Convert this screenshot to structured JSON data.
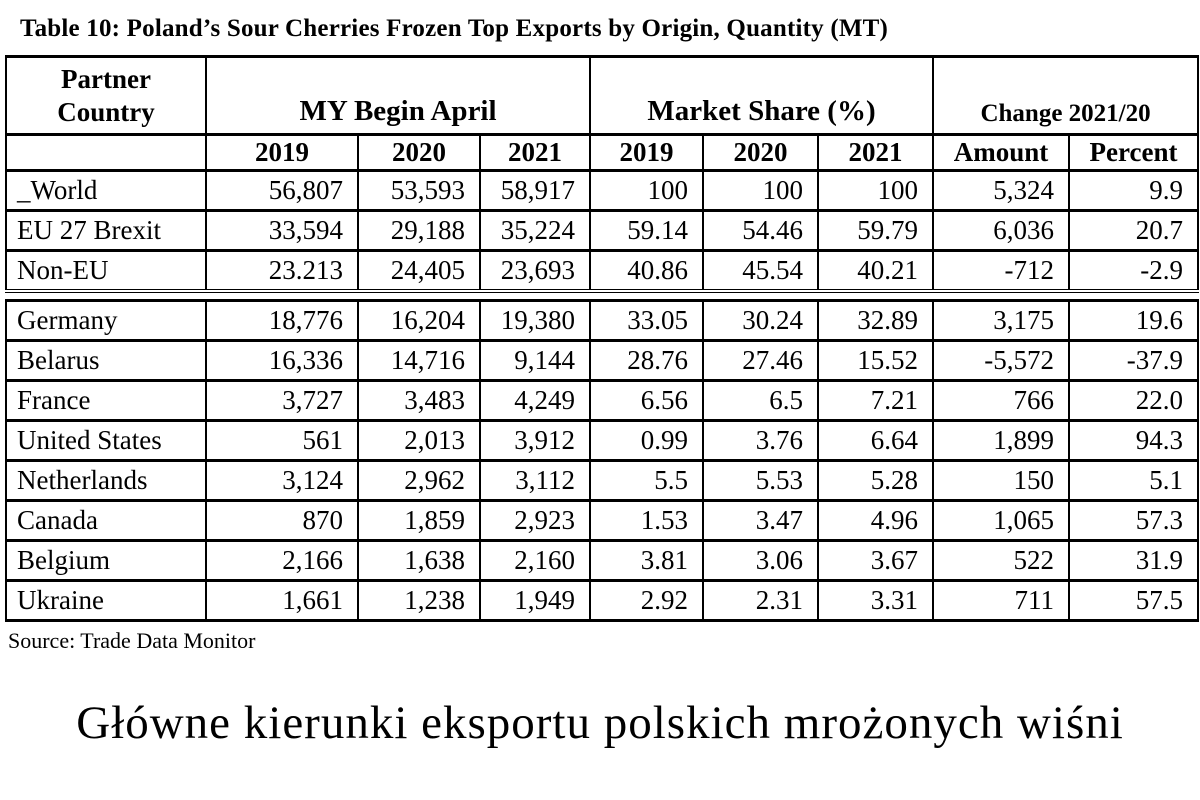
{
  "page": {
    "title": "Table 10: Poland’s Sour Cherries Frozen Top Exports by Origin, Quantity (MT)",
    "source_note": "Source: Trade Data Monitor",
    "caption": "Główne kierunki eksportu polskich mrożonych wiśni"
  },
  "table": {
    "header": {
      "partner_country": "Partner Country",
      "group_my": "MY Begin April",
      "group_market_share": "Market Share (%)",
      "group_change": "Change 2021/20",
      "sub": [
        "2019",
        "2020",
        "2021",
        "2019",
        "2020",
        "2021",
        "Amount",
        "Percent"
      ]
    },
    "summary_rows": [
      {
        "country": "_World",
        "cells": [
          "56,807",
          "53,593",
          "58,917",
          "100",
          "100",
          "100",
          "5,324",
          "9.9"
        ]
      },
      {
        "country": "EU 27 Brexit",
        "cells": [
          "33,594",
          "29,188",
          "35,224",
          "59.14",
          "54.46",
          "59.79",
          "6,036",
          "20.7"
        ]
      },
      {
        "country": "Non-EU",
        "cells": [
          "23.213",
          "24,405",
          "23,693",
          "40.86",
          "45.54",
          "40.21",
          "-712",
          "-2.9"
        ]
      }
    ],
    "country_rows": [
      {
        "country": "Germany",
        "cells": [
          "18,776",
          "16,204",
          "19,380",
          "33.05",
          "30.24",
          "32.89",
          "3,175",
          "19.6"
        ]
      },
      {
        "country": "Belarus",
        "cells": [
          "16,336",
          "14,716",
          "9,144",
          "28.76",
          "27.46",
          "15.52",
          "-5,572",
          "-37.9"
        ]
      },
      {
        "country": "France",
        "cells": [
          "3,727",
          "3,483",
          "4,249",
          "6.56",
          "6.5",
          "7.21",
          "766",
          "22.0"
        ]
      },
      {
        "country": "United States",
        "cells": [
          "561",
          "2,013",
          "3,912",
          "0.99",
          "3.76",
          "6.64",
          "1,899",
          "94.3"
        ]
      },
      {
        "country": "Netherlands",
        "cells": [
          "3,124",
          "2,962",
          "3,112",
          "5.5",
          "5.53",
          "5.28",
          "150",
          "5.1"
        ]
      },
      {
        "country": "Canada",
        "cells": [
          "870",
          "1,859",
          "2,923",
          "1.53",
          "3.47",
          "4.96",
          "1,065",
          "57.3"
        ]
      },
      {
        "country": "Belgium",
        "cells": [
          "2,166",
          "1,638",
          "2,160",
          "3.81",
          "3.06",
          "3.67",
          "522",
          "31.9"
        ]
      },
      {
        "country": "Ukraine",
        "cells": [
          "1,661",
          "1,238",
          "1,949",
          "2.92",
          "2.31",
          "3.31",
          "711",
          "57.5"
        ]
      }
    ]
  }
}
